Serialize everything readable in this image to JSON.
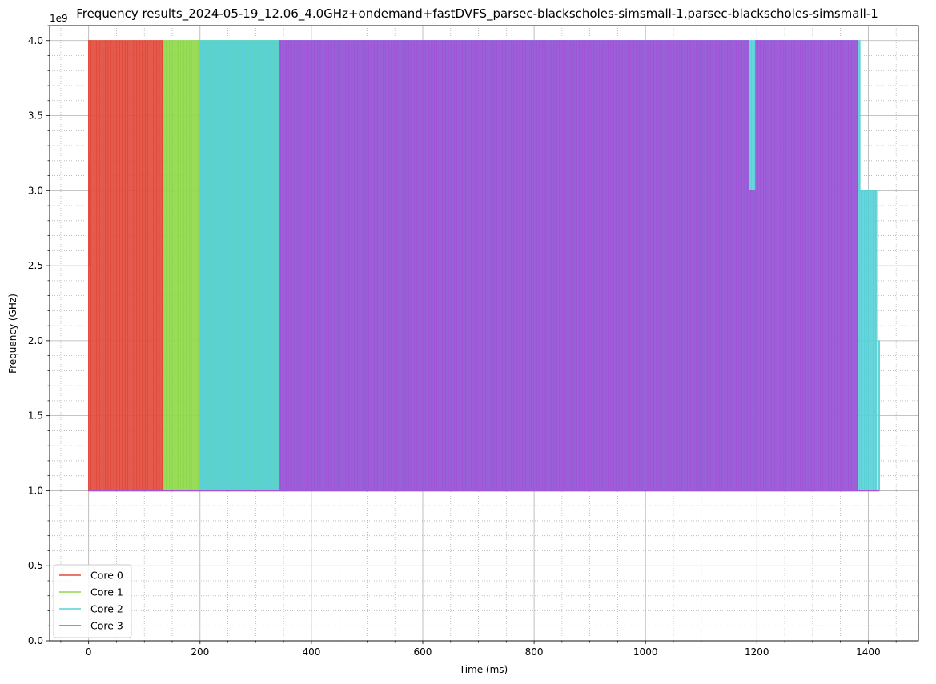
{
  "chart_data": {
    "type": "line",
    "title": "Frequency results_2024-05-19_12.06_4.0GHz+ondemand+fastDVFS_parsec-blackscholes-simsmall-1,parsec-blackscholes-simsmall-1",
    "xlabel": "Time (ms)",
    "ylabel": "Frequency (GHz)",
    "y_offset_label": "1e9",
    "xlim": [
      -70,
      1490
    ],
    "ylim": [
      0,
      4100000000
    ],
    "x_ticks": [
      0,
      200,
      400,
      600,
      800,
      1000,
      1200,
      1400
    ],
    "x_tick_labels": [
      "0",
      "200",
      "400",
      "600",
      "800",
      "1000",
      "1200",
      "1400"
    ],
    "y_ticks": [
      0,
      500000000,
      1000000000,
      1500000000,
      2000000000,
      2500000000,
      3000000000,
      3500000000,
      4000000000
    ],
    "y_tick_labels": [
      "0.0",
      "0.5",
      "1.0",
      "1.5",
      "2.0",
      "2.5",
      "3.0",
      "3.5",
      "4.0"
    ],
    "grid": "major solid, minor dotted",
    "legend_position": "lower left",
    "series": [
      {
        "name": "Core 0",
        "color": "#e24a3b",
        "pattern": "oscillating between 1.0e9 and 4.0e9 Hz, period ~4 ms",
        "start_ms": 0,
        "end_ms": 135,
        "initial_steps": [
          [
            0,
            3200000000
          ],
          [
            1,
            2500000000
          ],
          [
            3,
            4000000000
          ]
        ],
        "high": 4000000000,
        "low": 1000000000,
        "period_ms": 4
      },
      {
        "name": "Core 1",
        "color": "#8ed94a",
        "pattern": "oscillating between 1.0e9 and 4.0e9 Hz, period ~4 ms",
        "start_ms": 135,
        "end_ms": 345,
        "high": 4000000000,
        "low": 1000000000,
        "period_ms": 4,
        "extra_steps": [
          [
            340,
            3000000000
          ]
        ]
      },
      {
        "name": "Core 2",
        "color": "#58d2d8",
        "pattern": "oscillating between 1.0e9 and 4.0e9 Hz, period ~4 ms",
        "start_ms": 200,
        "end_ms": 1420,
        "high": 4000000000,
        "low": 1000000000,
        "period_ms": 4,
        "tail": {
          "start_ms": 1385,
          "end_ms": 1415,
          "high": 3000000000,
          "low": 1000000000,
          "final_ms": 1418,
          "final_value": 2000000000
        }
      },
      {
        "name": "Core 3",
        "color": "#a154d8",
        "pattern": "oscillating between 1.0e9 and 4.0e9 Hz, period ~4 ms",
        "start_ms": 343,
        "end_ms": 1382,
        "high": 4000000000,
        "low": 1000000000,
        "period_ms": 4,
        "dip": {
          "start_ms": 1185,
          "end_ms": 1198,
          "high": 3000000000
        },
        "end_value_ms": 1380,
        "end_value": 2000000000
      }
    ]
  }
}
